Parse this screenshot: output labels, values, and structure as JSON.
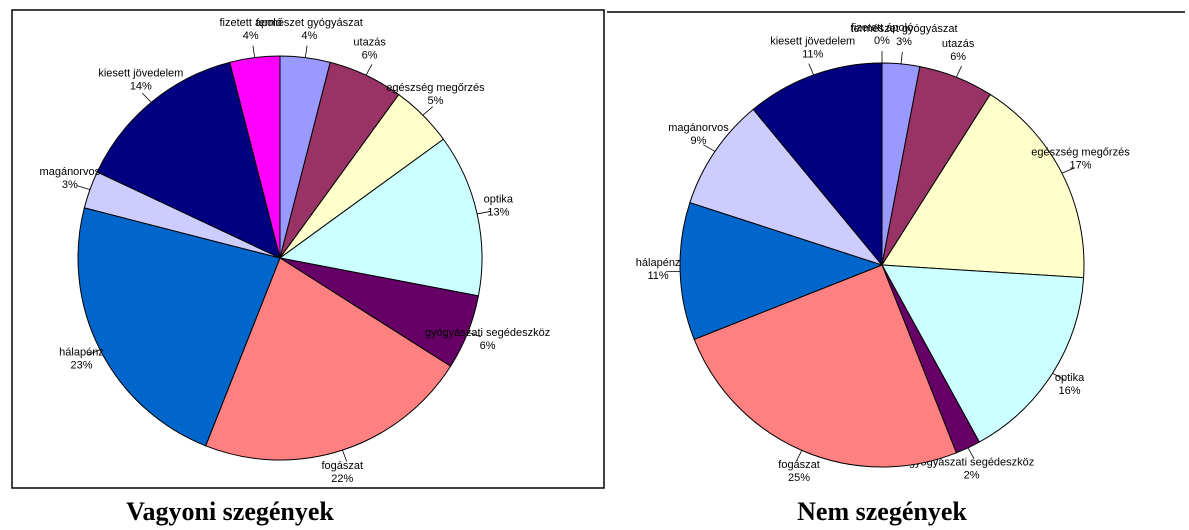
{
  "chart_data": [
    {
      "type": "pie",
      "title": "Vagyoni szegények",
      "categories": [
        "természet gyógyászat",
        "utazás",
        "egészség megőrzés",
        "optika",
        "gyógyászati segédeszköz",
        "fogászat",
        "hálapénz",
        "magánorvos",
        "kiesett jövedelem",
        "fizetett ápoló"
      ],
      "values": [
        4,
        6,
        5,
        13,
        6,
        22,
        23,
        3,
        14,
        4
      ],
      "value_labels": [
        "4%",
        "6%",
        "5%",
        "13%",
        "6%",
        "22%",
        "23%",
        "3%",
        "14%",
        "4%"
      ],
      "colors": [
        "#9999ff",
        "#993366",
        "#ffffcc",
        "#ccffff",
        "#660066",
        "#ff8080",
        "#0066cc",
        "#ccccff",
        "#000080",
        "#ff00ff"
      ]
    },
    {
      "type": "pie",
      "title": "Nem szegények",
      "categories": [
        "természet gyógyászat",
        "utazás",
        "egészség megőrzés",
        "optika",
        "gyógyászati segédeszköz",
        "fogászat",
        "hálapénz",
        "magánorvos",
        "kiesett jövedelem",
        "fizetett ápoló"
      ],
      "values": [
        3,
        6,
        17,
        16,
        2,
        25,
        11,
        9,
        11,
        0
      ],
      "value_labels": [
        "3%",
        "6%",
        "17%",
        "16%",
        "2%",
        "25%",
        "11%",
        "9%",
        "11%",
        "0%"
      ],
      "colors": [
        "#9999ff",
        "#993366",
        "#ffffcc",
        "#ccffff",
        "#660066",
        "#ff8080",
        "#0066cc",
        "#ccccff",
        "#000080",
        "#ff00ff"
      ]
    }
  ]
}
